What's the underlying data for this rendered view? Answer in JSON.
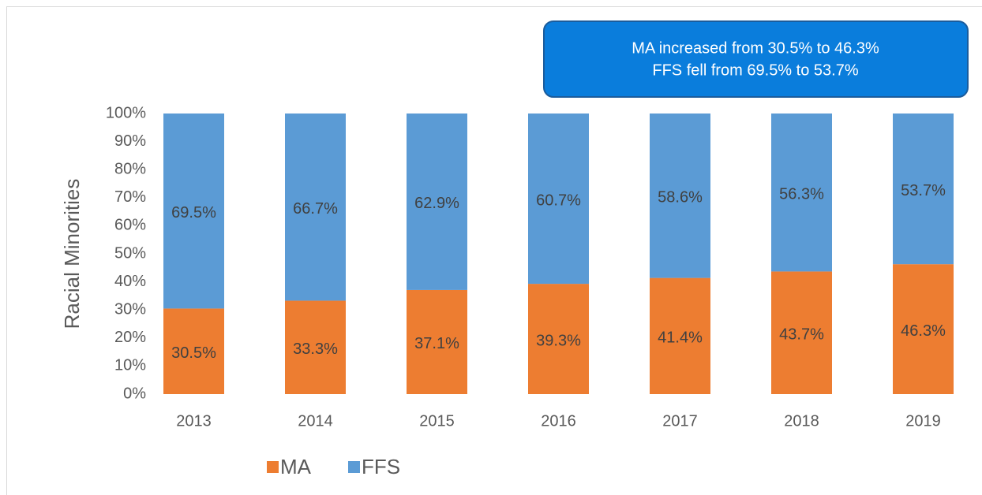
{
  "chart_data": {
    "type": "stacked_bar",
    "y_label": "Racial Minorities",
    "annotation": [
      "MA increased from 30.5% to 46.3%",
      "FFS fell from 69.5% to 53.7%"
    ],
    "categories": [
      "2013",
      "2014",
      "2015",
      "2016",
      "2017",
      "2018",
      "2019"
    ],
    "series": [
      {
        "name": "MA",
        "color": "#ed7d31",
        "values": [
          30.5,
          33.3,
          37.1,
          39.3,
          41.4,
          43.7,
          46.3
        ],
        "value_labels": [
          "30.5%",
          "33.3%",
          "37.1%",
          "39.3%",
          "41.4%",
          "43.7%",
          "46.3%"
        ]
      },
      {
        "name": "FFS",
        "color": "#5b9bd5",
        "values": [
          69.5,
          66.7,
          62.9,
          60.7,
          58.6,
          56.3,
          53.7
        ],
        "value_labels": [
          "69.5%",
          "66.7%",
          "62.9%",
          "60.7%",
          "58.6%",
          "56.3%",
          "53.7%"
        ]
      }
    ],
    "ylim": [
      0,
      100
    ],
    "yticks": [
      {
        "value": 0,
        "label": "0%"
      },
      {
        "value": 10,
        "label": "10%"
      },
      {
        "value": 20,
        "label": "20%"
      },
      {
        "value": 30,
        "label": "30%"
      },
      {
        "value": 40,
        "label": "40%"
      },
      {
        "value": 50,
        "label": "50%"
      },
      {
        "value": 60,
        "label": "60%"
      },
      {
        "value": 70,
        "label": "70%"
      },
      {
        "value": 80,
        "label": "80%"
      },
      {
        "value": 90,
        "label": "90%"
      },
      {
        "value": 100,
        "label": "100%"
      }
    ],
    "legend": "bottom"
  }
}
